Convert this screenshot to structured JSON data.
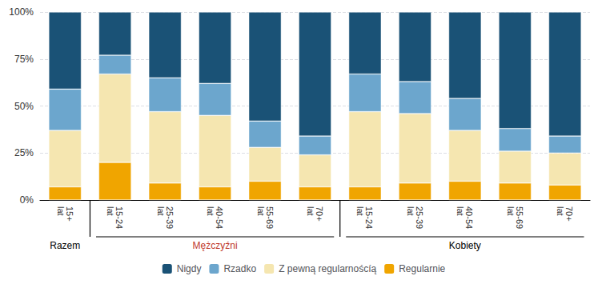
{
  "chart_data": {
    "type": "bar",
    "stacked": true,
    "categories": [
      "15+\nlat",
      "15-24\nlat",
      "25-39\nlat",
      "40-54\nlat",
      "55-69\nlat",
      "70+\nlat",
      "15-24\nlat",
      "25-39\nlat",
      "40-54\nlat",
      "55-69\nlat",
      "70+\nlat"
    ],
    "series": [
      {
        "name": "Nigdy",
        "color": "#1a5276",
        "values": [
          41,
          23,
          35,
          38,
          58,
          66,
          33,
          37,
          46,
          62,
          66
        ]
      },
      {
        "name": "Rzadko",
        "color": "#6ca6cd",
        "values": [
          22,
          10,
          18,
          17,
          14,
          10,
          20,
          17,
          17,
          12,
          9
        ]
      },
      {
        "name": "Z pewną regularnoścíą",
        "color": "#f5e6b0",
        "values": [
          30,
          47,
          38,
          38,
          18,
          17,
          40,
          37,
          27,
          17,
          17
        ]
      },
      {
        "name": "Regularnie",
        "color": "#f0a500",
        "values": [
          7,
          20,
          9,
          7,
          10,
          7,
          7,
          9,
          10,
          9,
          8
        ]
      }
    ],
    "ylim": [
      0,
      100
    ],
    "yticks": [
      {
        "value": 0,
        "label": "0%"
      },
      {
        "value": 25,
        "label": "25%"
      },
      {
        "value": 50,
        "label": "50%"
      },
      {
        "value": 75,
        "label": "75%"
      },
      {
        "value": 100,
        "label": "100%"
      }
    ],
    "grid": true,
    "legend": "bottom",
    "annotations": [
      {
        "text": "Razem",
        "color": "black",
        "span": 1
      },
      {
        "text": "Mężczyźni",
        "color": "#c0392b",
        "span": 5
      },
      {
        "text": "Kobiety",
        "color": "black",
        "span": 5
      }
    ]
  }
}
